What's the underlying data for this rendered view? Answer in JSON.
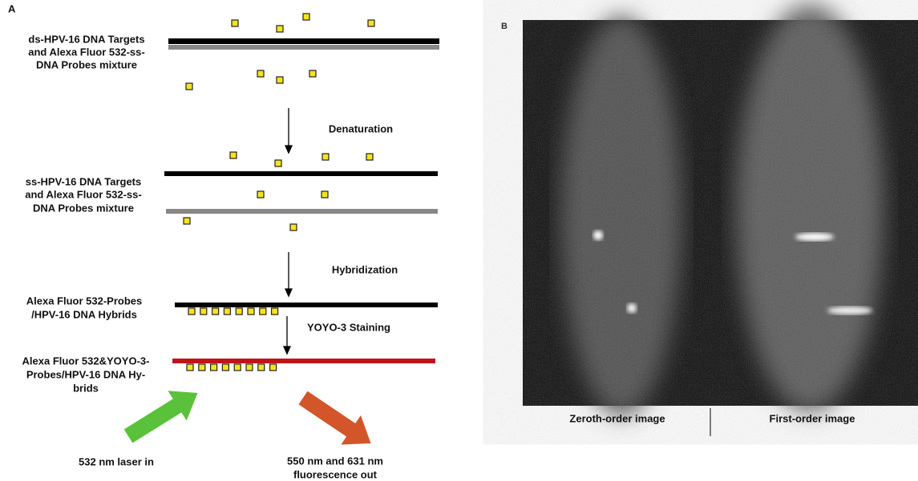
{
  "panel_a": {
    "label": "A",
    "steps": [
      {
        "lines": [
          "ds-HPV-16 DNA Targets",
          "and Alexa Fluor 532-ss-",
          "DNA Probes mixture"
        ]
      },
      {
        "lines": [
          "ss-HPV-16 DNA Targets",
          "and Alexa Fluor 532-ss-",
          "DNA Probes mixture"
        ]
      },
      {
        "lines": [
          "Alexa Fluor 532-Probes",
          "/HPV-16 DNA Hybrids"
        ]
      },
      {
        "lines": [
          "Alexa Fluor 532&YOYO-3-",
          "Probes/HPV-16 DNA Hy-",
          "brids"
        ]
      }
    ],
    "arrows": [
      "Denaturation",
      "Hybridization",
      "YOYO-3 Staining"
    ],
    "laser_in": "532 nm laser in",
    "fluorescence_out": [
      "550 nm and 631 nm",
      "fluorescence out"
    ]
  },
  "panel_b": {
    "label": "B",
    "captions": [
      "Zeroth-order image",
      "First-order image"
    ]
  }
}
